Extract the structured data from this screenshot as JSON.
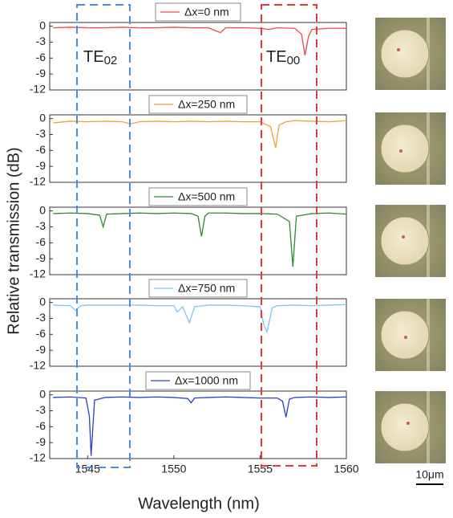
{
  "figure": {
    "xlabel": "Wavelength (nm)",
    "ylabel": "Relative transmission (dB)",
    "annotations": [
      {
        "text": "TE",
        "subscript": "02",
        "color": "#4a8fd6"
      },
      {
        "text": "TE",
        "subscript": "00",
        "color": "#e8383b"
      }
    ],
    "scale_bar": "10μm"
  },
  "chart_data": [
    {
      "type": "line",
      "xlim": [
        1542.8,
        1560
      ],
      "ylim": [
        -12,
        0.7
      ],
      "yticks": [
        0,
        -3,
        -6,
        -9,
        -12
      ],
      "legend": "upper center",
      "x": [
        1543,
        1544,
        1545,
        1546,
        1547,
        1548,
        1549,
        1550,
        1551,
        1552,
        1552.7,
        1553,
        1554,
        1555,
        1555.5,
        1556,
        1557,
        1557.4,
        1557.6,
        1557.8,
        1558,
        1559,
        1560
      ],
      "series": [
        {
          "name": "Δx=0 nm",
          "color": "#f0474a",
          "values": [
            -0.3,
            -0.2,
            -0.3,
            -0.3,
            -0.2,
            -0.3,
            -0.3,
            -0.2,
            -0.3,
            -0.3,
            -1.2,
            -0.3,
            -0.3,
            -0.4,
            -0.6,
            -0.3,
            -0.4,
            -1.5,
            -5.5,
            -2,
            -0.6,
            -0.4,
            -0.4
          ]
        }
      ]
    },
    {
      "type": "line",
      "xlim": [
        1542.8,
        1560
      ],
      "ylim": [
        -12,
        0.7
      ],
      "yticks": [
        0,
        -3,
        -6,
        -9,
        -12
      ],
      "legend": "upper center",
      "x": [
        1543,
        1544,
        1545,
        1546,
        1547,
        1547.5,
        1548,
        1549,
        1550,
        1551,
        1552,
        1553,
        1554,
        1555,
        1555.6,
        1555.9,
        1556.1,
        1556.5,
        1557,
        1558,
        1559,
        1560
      ],
      "series": [
        {
          "name": "Δx=250 nm",
          "color": "#f2a03d",
          "values": [
            -0.8,
            -0.5,
            -0.6,
            -0.5,
            -0.6,
            -1.0,
            -0.6,
            -0.5,
            -0.6,
            -0.5,
            -0.6,
            -0.5,
            -0.6,
            -0.6,
            -1.5,
            -5.5,
            -1.2,
            -0.6,
            -0.4,
            -0.5,
            -0.6,
            -0.4
          ]
        }
      ]
    },
    {
      "type": "line",
      "xlim": [
        1542.8,
        1560
      ],
      "ylim": [
        -12,
        0.7
      ],
      "yticks": [
        0,
        -3,
        -6,
        -9,
        -12
      ],
      "legend": "upper center",
      "x": [
        1543,
        1544,
        1545,
        1545.7,
        1545.9,
        1546.1,
        1547,
        1548,
        1549,
        1550,
        1551,
        1551.4,
        1551.6,
        1551.8,
        1552,
        1553,
        1554,
        1555,
        1556,
        1556.7,
        1556.9,
        1557.1,
        1558,
        1559,
        1560
      ],
      "series": [
        {
          "name": "Δx=500 nm",
          "color": "#2e8b2e",
          "values": [
            -0.5,
            -0.4,
            -0.5,
            -0.8,
            -3,
            -0.6,
            -0.5,
            -0.4,
            -0.5,
            -0.4,
            -0.5,
            -1,
            -4.8,
            -1,
            -0.4,
            -0.4,
            -0.5,
            -0.5,
            -0.6,
            -2,
            -10.5,
            -1,
            -0.5,
            -0.4,
            -0.6
          ]
        }
      ]
    },
    {
      "type": "line",
      "xlim": [
        1542.8,
        1560
      ],
      "ylim": [
        -12,
        0.7
      ],
      "yticks": [
        0,
        -3,
        -6,
        -9,
        -12
      ],
      "legend": "upper center",
      "x": [
        1543,
        1544,
        1544.3,
        1544.6,
        1545,
        1546,
        1547,
        1548,
        1549,
        1550,
        1550.2,
        1550.5,
        1550.9,
        1551.2,
        1552,
        1553,
        1554,
        1555,
        1555.2,
        1555.4,
        1555.7,
        1556,
        1557,
        1558,
        1559,
        1560
      ],
      "series": [
        {
          "name": "Δx=750 nm",
          "color": "#7cc8f0",
          "values": [
            -0.5,
            -0.6,
            -1.5,
            -0.6,
            -0.5,
            -0.5,
            -0.5,
            -0.5,
            -0.6,
            -0.6,
            -1.8,
            -0.8,
            -3.8,
            -0.8,
            -0.5,
            -0.5,
            -0.6,
            -0.8,
            -4,
            -5.6,
            -1,
            -0.6,
            -0.5,
            -0.6,
            -0.5,
            -0.4
          ]
        }
      ]
    },
    {
      "type": "line",
      "xlim": [
        1542.8,
        1560
      ],
      "ylim": [
        -12,
        0.7
      ],
      "yticks": [
        0,
        -3,
        -6,
        -9,
        -12
      ],
      "xticks": [
        1545,
        1550,
        1555,
        1560
      ],
      "legend": "upper center",
      "x": [
        1543,
        1544,
        1544.9,
        1545.1,
        1545.2,
        1545.4,
        1546,
        1547,
        1548,
        1549,
        1550,
        1550.8,
        1551,
        1551.2,
        1552,
        1553,
        1554,
        1555,
        1556,
        1556.3,
        1556.5,
        1556.7,
        1557,
        1558,
        1559,
        1560
      ],
      "series": [
        {
          "name": "Δx=1000 nm",
          "color": "#2d3fc4",
          "values": [
            -0.5,
            -0.4,
            -0.6,
            -4,
            -11.5,
            -1,
            -0.5,
            -0.4,
            -0.5,
            -0.4,
            -0.5,
            -0.7,
            -1.5,
            -0.6,
            -0.5,
            -0.4,
            -0.5,
            -0.6,
            -0.6,
            -1.2,
            -4.2,
            -0.8,
            -0.5,
            -0.4,
            -0.5,
            -0.4
          ]
        }
      ]
    }
  ]
}
